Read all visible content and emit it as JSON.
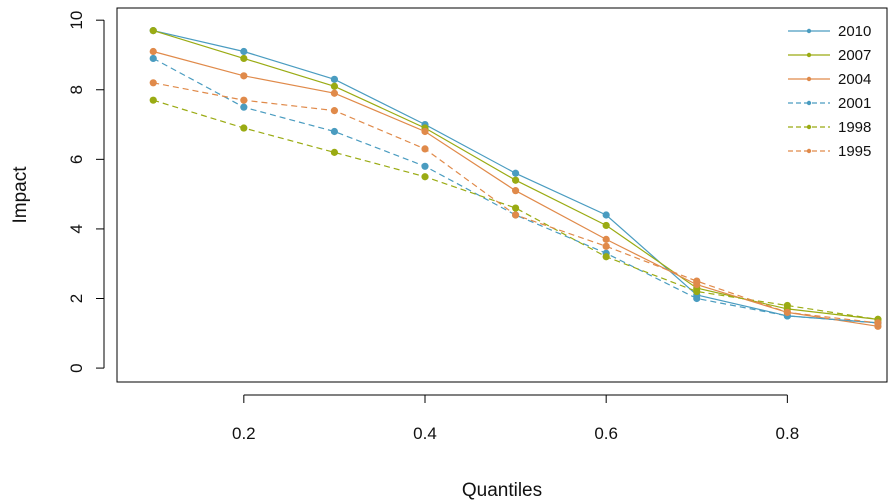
{
  "chart_data": {
    "type": "line",
    "xlabel": "Quantiles",
    "ylabel": "Impact",
    "xlim": [
      0.06,
      0.91
    ],
    "ylim": [
      -0.4,
      10.35
    ],
    "x_ticks": [
      0.2,
      0.4,
      0.6,
      0.8
    ],
    "x_tick_labels": [
      "0.2",
      "0.4",
      "0.6",
      "0.8"
    ],
    "y_ticks": [
      0,
      2,
      4,
      6,
      8,
      10
    ],
    "y_tick_labels": [
      "0",
      "2",
      "4",
      "6",
      "8",
      "10"
    ],
    "grid": false,
    "legend_position": "top-right",
    "x": [
      0.1,
      0.2,
      0.3,
      0.4,
      0.5,
      0.6,
      0.7,
      0.8,
      0.9
    ],
    "series": [
      {
        "name": "2010",
        "color": "#4a9cc0",
        "dash": "solid",
        "values": [
          9.7,
          9.1,
          8.3,
          7.0,
          5.6,
          4.4,
          2.1,
          1.5,
          1.3
        ]
      },
      {
        "name": "2007",
        "color": "#9aab13",
        "dash": "solid",
        "values": [
          9.7,
          8.9,
          8.1,
          6.9,
          5.4,
          4.1,
          2.3,
          1.7,
          1.4
        ]
      },
      {
        "name": "2004",
        "color": "#e08a4a",
        "dash": "solid",
        "values": [
          9.1,
          8.4,
          7.9,
          6.8,
          5.1,
          3.7,
          2.4,
          1.6,
          1.2
        ]
      },
      {
        "name": "2001",
        "color": "#4a9cc0",
        "dash": "dashed",
        "values": [
          8.9,
          7.5,
          6.8,
          5.8,
          4.4,
          3.3,
          2.0,
          1.5,
          1.3
        ]
      },
      {
        "name": "1998",
        "color": "#9aab13",
        "dash": "dashed",
        "values": [
          7.7,
          6.9,
          6.2,
          5.5,
          4.6,
          3.2,
          2.2,
          1.8,
          1.4
        ]
      },
      {
        "name": "1995",
        "color": "#e08a4a",
        "dash": "dashed",
        "values": [
          8.2,
          7.7,
          7.4,
          6.3,
          4.4,
          3.5,
          2.5,
          1.6,
          1.3
        ]
      }
    ]
  }
}
